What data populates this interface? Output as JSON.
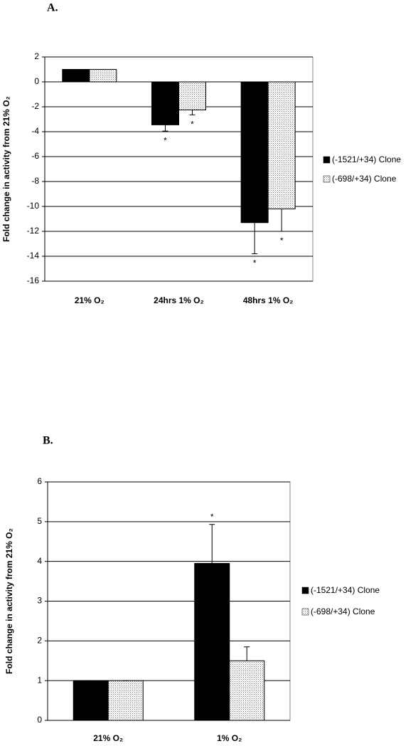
{
  "chart_data": [
    {
      "type": "bar",
      "panel_label": "A.",
      "y_label": "Fold change in activity  from 21% O₂",
      "categories": [
        "21% O₂",
        "24hrs 1% O₂",
        "48hrs 1% O₂"
      ],
      "series": [
        {
          "name": "(-1521/+34) Clone",
          "color": "#000000",
          "pattern": "solid",
          "values": [
            1,
            -3.45,
            -11.3
          ],
          "errors": [
            0,
            0.5,
            2.5
          ],
          "significance": [
            null,
            "*",
            "*"
          ]
        },
        {
          "name": "(-698/+34) Clone",
          "color": "#c8c8c8",
          "pattern": "dotted",
          "values": [
            1,
            -2.25,
            -10.2
          ],
          "errors": [
            0,
            0.4,
            1.8
          ],
          "significance": [
            null,
            "*",
            "*"
          ]
        }
      ],
      "ylim": [
        -16,
        2
      ],
      "yticks": [
        -16,
        -14,
        -12,
        -10,
        -8,
        -6,
        -4,
        -2,
        0,
        2
      ],
      "grid": true
    },
    {
      "type": "bar",
      "panel_label": "B.",
      "y_label": "Fold change in activity  from 21% O₂",
      "categories": [
        "21% O₂",
        "1% O₂"
      ],
      "series": [
        {
          "name": "(-1521/+34) Clone",
          "color": "#000000",
          "pattern": "solid",
          "values": [
            1,
            3.95
          ],
          "errors": [
            0,
            0.98
          ],
          "significance": [
            null,
            "*"
          ]
        },
        {
          "name": "(-698/+34) Clone",
          "color": "#c8c8c8",
          "pattern": "dotted",
          "values": [
            1,
            1.5
          ],
          "errors": [
            0,
            0.35
          ],
          "significance": [
            null,
            null
          ]
        }
      ],
      "ylim": [
        0,
        6
      ],
      "yticks": [
        0,
        1,
        2,
        3,
        4,
        5,
        6
      ],
      "grid": true
    }
  ]
}
